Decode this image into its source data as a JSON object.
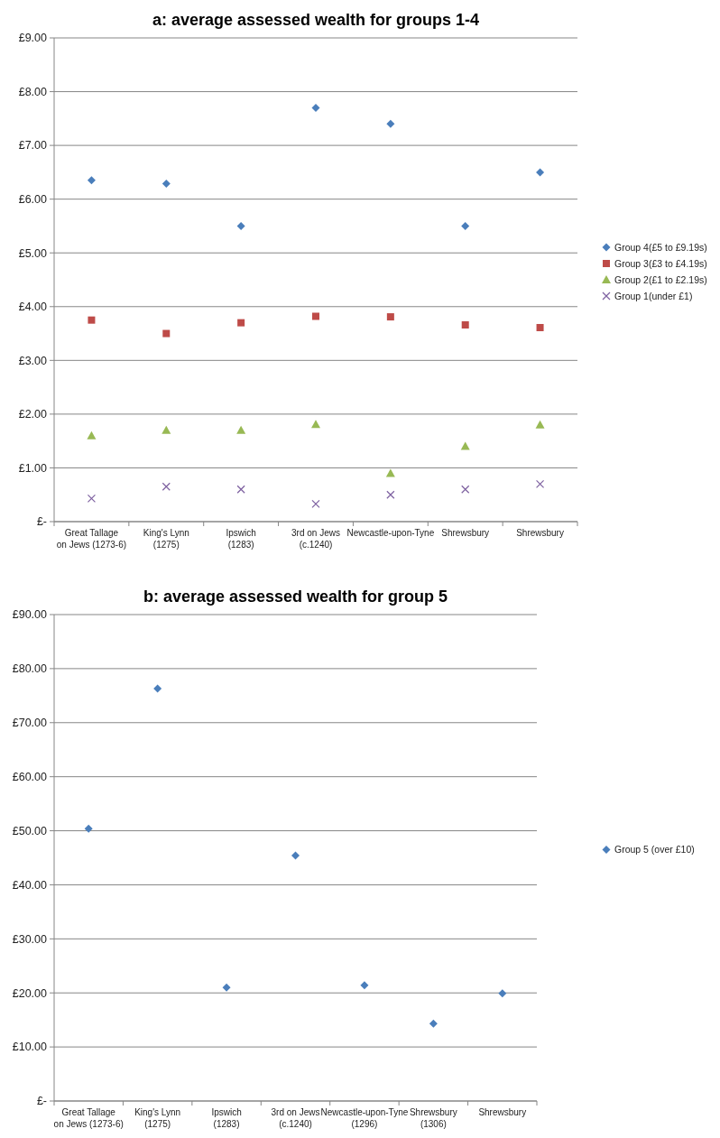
{
  "chart_data": [
    {
      "type": "scatter",
      "title": "a: average assessed wealth for groups 1-4",
      "categories": [
        "Great Tallage on Jews (1273-6)",
        "King's Lynn (1275)",
        "Ipswich (1283)",
        "3rd on Jews (c.1240)",
        "Newcastle-upon-Tyne",
        "Shrewsbury",
        "Shrewsbury"
      ],
      "series": [
        {
          "name": "Group 4(£5 to £9.19s)",
          "color": "#4a7ebb",
          "marker": "diamond",
          "values": [
            6.35,
            6.29,
            5.5,
            7.7,
            7.4,
            5.5,
            6.5
          ]
        },
        {
          "name": "Group 3(£3 to £4.19s)",
          "color": "#be4b48",
          "marker": "square",
          "values": [
            3.75,
            3.5,
            3.7,
            3.82,
            3.81,
            3.66,
            3.61
          ]
        },
        {
          "name": "Group 2(£1 to £2.19s)",
          "color": "#98b954",
          "marker": "triangle",
          "values": [
            1.6,
            1.7,
            1.7,
            1.81,
            0.9,
            1.4,
            1.8
          ]
        },
        {
          "name": "Group 1(under £1)",
          "color": "#7d60a0",
          "marker": "cross",
          "values": [
            0.43,
            0.65,
            0.6,
            0.33,
            0.5,
            0.6,
            0.7
          ]
        }
      ],
      "ylim": [
        0,
        9
      ],
      "yticks": [
        {
          "value": 0,
          "label": "£-"
        },
        {
          "value": 1,
          "label": "£1.00"
        },
        {
          "value": 2,
          "label": "£2.00"
        },
        {
          "value": 3,
          "label": "£3.00"
        },
        {
          "value": 4,
          "label": "£4.00"
        },
        {
          "value": 5,
          "label": "£5.00"
        },
        {
          "value": 6,
          "label": "£6.00"
        },
        {
          "value": 7,
          "label": "£7.00"
        },
        {
          "value": 8,
          "label": "£8.00"
        },
        {
          "value": 9,
          "label": "£9.00"
        }
      ],
      "grid": "y",
      "legend": "right"
    },
    {
      "type": "scatter",
      "title": "b: average assessed wealth for group 5",
      "categories": [
        "Great Tallage on Jews (1273-6)",
        "King's Lynn (1275)",
        "Ipswich (1283)",
        "3rd on Jews (c.1240)",
        "Newcastle-upon-Tyne (1296)",
        "Shrewsbury (1306)",
        "Shrewsbury"
      ],
      "series": [
        {
          "name": "Group 5 (over £10)",
          "color": "#4a7ebb",
          "marker": "diamond",
          "values": [
            50.4,
            76.3,
            21.0,
            45.4,
            21.4,
            14.3,
            19.9
          ]
        }
      ],
      "ylim": [
        0,
        90
      ],
      "yticks": [
        {
          "value": 0,
          "label": "£-"
        },
        {
          "value": 10,
          "label": "£10.00"
        },
        {
          "value": 20,
          "label": "£20.00"
        },
        {
          "value": 30,
          "label": "£30.00"
        },
        {
          "value": 40,
          "label": "£40.00"
        },
        {
          "value": 50,
          "label": "£50.00"
        },
        {
          "value": 60,
          "label": "£60.00"
        },
        {
          "value": 70,
          "label": "£70.00"
        },
        {
          "value": 80,
          "label": "£80.00"
        },
        {
          "value": 90,
          "label": "£90.00"
        }
      ],
      "grid": "y",
      "legend": "right"
    }
  ]
}
